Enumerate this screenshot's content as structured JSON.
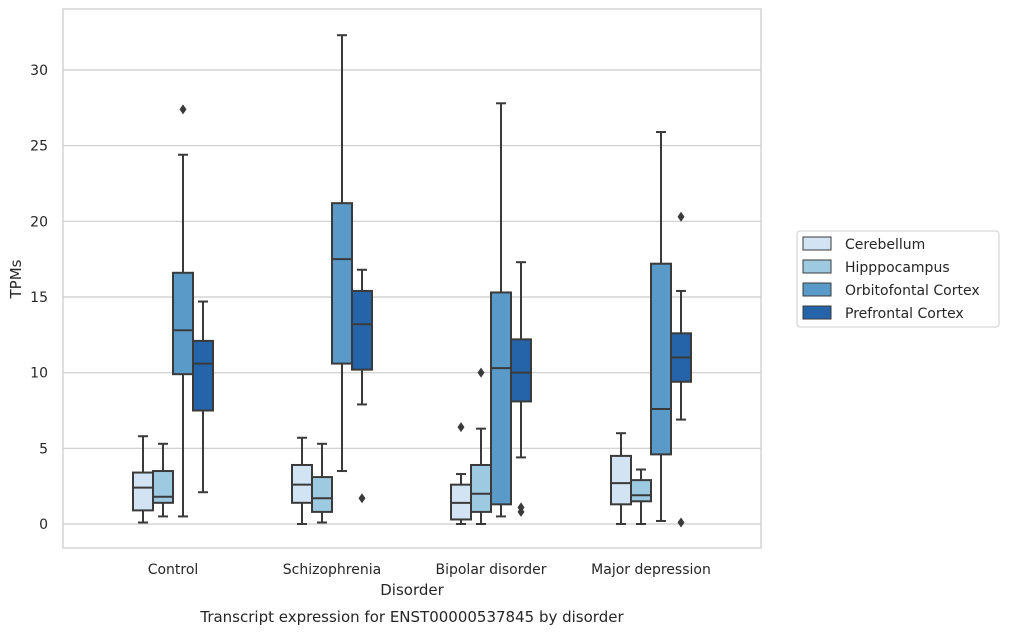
{
  "chart_data": {
    "type": "box",
    "title": "",
    "caption": "Transcript expression for ENST00000537845 by disorder",
    "xlabel": "Disorder",
    "ylabel": "TPMs",
    "ylim": [
      -1.5,
      34
    ],
    "yticks": [
      "0",
      "5",
      "10",
      "15",
      "20",
      "25",
      "30"
    ],
    "ytick_values": [
      0,
      5,
      10,
      15,
      20,
      25,
      30
    ],
    "grid": "horizontal",
    "legend_placement": "right",
    "categories": [
      "Control",
      "Schizophrenia",
      "Bipolar disorder",
      "Major depression"
    ],
    "series": [
      {
        "name": "Cerebellum",
        "color": "#d2e3f3",
        "boxes": [
          {
            "whislo": 0.1,
            "q1": 0.9,
            "med": 2.4,
            "q3": 3.4,
            "whishi": 5.8,
            "fliers": []
          },
          {
            "whislo": 0.0,
            "q1": 1.4,
            "med": 2.6,
            "q3": 3.9,
            "whishi": 5.7,
            "fliers": []
          },
          {
            "whislo": 0.0,
            "q1": 0.3,
            "med": 1.4,
            "q3": 2.6,
            "whishi": 3.3,
            "fliers": [
              6.4
            ]
          },
          {
            "whislo": 0.0,
            "q1": 1.3,
            "med": 2.7,
            "q3": 4.5,
            "whishi": 6.0,
            "fliers": []
          }
        ]
      },
      {
        "name": "Hipppocampus",
        "color": "#9ecae1",
        "boxes": [
          {
            "whislo": 0.5,
            "q1": 1.4,
            "med": 1.8,
            "q3": 3.5,
            "whishi": 5.3,
            "fliers": []
          },
          {
            "whislo": 0.1,
            "q1": 0.8,
            "med": 1.7,
            "q3": 3.1,
            "whishi": 5.3,
            "fliers": []
          },
          {
            "whislo": 0.0,
            "q1": 0.8,
            "med": 2.0,
            "q3": 3.9,
            "whishi": 6.3,
            "fliers": [
              10.0
            ]
          },
          {
            "whislo": 0.0,
            "q1": 1.5,
            "med": 1.9,
            "q3": 2.9,
            "whishi": 3.6,
            "fliers": []
          }
        ]
      },
      {
        "name": "Orbitofontal Cortex",
        "color": "#5a9ac8",
        "boxes": [
          {
            "whislo": 0.5,
            "q1": 9.9,
            "med": 12.8,
            "q3": 16.6,
            "whishi": 24.4,
            "fliers": [
              27.4
            ]
          },
          {
            "whislo": 3.5,
            "q1": 10.6,
            "med": 17.5,
            "q3": 21.2,
            "whishi": 32.3,
            "fliers": []
          },
          {
            "whislo": 0.5,
            "q1": 1.3,
            "med": 10.3,
            "q3": 15.3,
            "whishi": 27.8,
            "fliers": []
          },
          {
            "whislo": 0.2,
            "q1": 4.6,
            "med": 7.6,
            "q3": 17.2,
            "whishi": 25.9,
            "fliers": []
          }
        ]
      },
      {
        "name": "Prefrontal Cortex",
        "color": "#2564a8",
        "boxes": [
          {
            "whislo": 2.1,
            "q1": 7.5,
            "med": 10.6,
            "q3": 12.1,
            "whishi": 14.7,
            "fliers": []
          },
          {
            "whislo": 7.9,
            "q1": 10.2,
            "med": 13.2,
            "q3": 15.4,
            "whishi": 16.8,
            "fliers": [
              1.7
            ]
          },
          {
            "whislo": 4.4,
            "q1": 8.1,
            "med": 10.0,
            "q3": 12.2,
            "whishi": 17.3,
            "fliers": [
              1.1,
              0.8
            ]
          },
          {
            "whislo": 6.9,
            "q1": 9.4,
            "med": 11.0,
            "q3": 12.6,
            "whishi": 15.4,
            "fliers": [
              20.3,
              0.1
            ]
          }
        ]
      }
    ]
  }
}
